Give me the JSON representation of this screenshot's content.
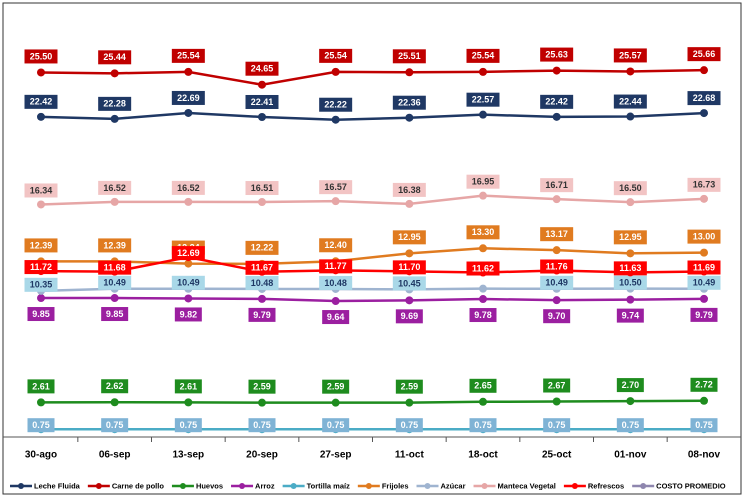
{
  "chart_data": {
    "type": "line",
    "categories": [
      "30-ago",
      "06-sep",
      "13-sep",
      "20-sep",
      "27-sep",
      "11-oct",
      "18-oct",
      "25-oct",
      "01-nov",
      "08-nov"
    ],
    "ylim": [
      0,
      29
    ],
    "series": [
      {
        "name": "Leche Fluida",
        "color": "#1f3864",
        "values": [
          22.42,
          22.28,
          22.69,
          22.41,
          22.22,
          22.36,
          22.57,
          22.42,
          22.44,
          22.68
        ],
        "value_labels": [
          "22.42",
          "22.28",
          "22.69",
          "22.41",
          "22.22",
          "22.36",
          "22.57",
          "22.42",
          "22.44",
          "22.68"
        ]
      },
      {
        "name": "Carne de pollo",
        "color": "#c00000",
        "values": [
          25.5,
          25.44,
          25.54,
          24.65,
          25.54,
          25.51,
          25.54,
          25.63,
          25.57,
          25.66
        ],
        "value_labels": [
          "25.50",
          "25.44",
          "25.54",
          "24.65",
          "25.54",
          "25.51",
          "25.54",
          "25.63",
          "25.57",
          "25.66"
        ]
      },
      {
        "name": "Huevos",
        "color": "#1e8c1e",
        "values": [
          2.61,
          2.62,
          2.61,
          2.59,
          2.59,
          2.59,
          2.65,
          2.67,
          2.7,
          2.72
        ],
        "value_labels": [
          "2.61",
          "2.62",
          "2.61",
          "2.59",
          "2.59",
          "2.59",
          "2.65",
          "2.67",
          "2.70",
          "2.72"
        ]
      },
      {
        "name": "Arroz",
        "color": "#9b1fa0",
        "values": [
          9.85,
          9.85,
          9.82,
          9.79,
          9.64,
          9.69,
          9.78,
          9.7,
          9.74,
          9.79
        ],
        "value_labels": [
          "9.85",
          "9.85",
          "9.82",
          "9.79",
          "9.64",
          "9.69",
          "9.78",
          "9.70",
          "9.74",
          "9.79"
        ]
      },
      {
        "name": "Tortilla maíz",
        "color": "#4bacc6",
        "values": [
          0.75,
          0.75,
          0.75,
          0.75,
          0.75,
          0.75,
          0.75,
          0.75,
          0.75,
          0.75
        ],
        "value_labels": [
          "0.75",
          "0.75",
          "0.75",
          "0.75",
          "0.75",
          "0.75",
          "0.75",
          "0.75",
          "0.75",
          "0.75"
        ]
      },
      {
        "name": "Frijoles",
        "color": "#e07b20",
        "values": [
          12.39,
          12.39,
          12.24,
          12.22,
          12.4,
          12.95,
          13.3,
          13.17,
          12.95,
          13.0
        ],
        "value_labels": [
          "12.39",
          "12.39",
          "12.24",
          "12.22",
          "12.40",
          "12.95",
          "13.30",
          "13.17",
          "12.95",
          "13.00"
        ]
      },
      {
        "name": "Azúcar",
        "color": "#9fb4d0",
        "values": [
          10.35,
          10.49,
          10.49,
          10.48,
          10.48,
          10.45,
          10.5,
          10.49,
          10.5,
          10.49
        ],
        "value_labels": [
          "10.35",
          "10.49",
          "10.49",
          "10.48",
          "10.48",
          "10.45",
          null,
          "10.49",
          "10.50",
          "10.49"
        ]
      },
      {
        "name": "Manteca Vegetal",
        "color": "#e6a6a6",
        "values": [
          16.34,
          16.52,
          16.52,
          16.51,
          16.57,
          16.38,
          16.95,
          16.71,
          16.5,
          16.73
        ],
        "value_labels": [
          "16.34",
          "16.52",
          "16.52",
          "16.51",
          "16.57",
          "16.38",
          "16.95",
          "16.71",
          "16.50",
          "16.73"
        ]
      },
      {
        "name": "Refrescos",
        "color": "#ff0000",
        "values": [
          11.72,
          11.68,
          12.69,
          11.67,
          11.77,
          11.7,
          11.62,
          11.76,
          11.63,
          11.69
        ],
        "value_labels": [
          "11.72",
          "11.68",
          "12.69",
          "11.67",
          "11.77",
          "11.70",
          "11.62",
          "11.76",
          "11.63",
          "11.69"
        ]
      },
      {
        "name": "COSTO PROMEDIO",
        "color": "#8e86ae",
        "values": [
          null,
          null,
          null,
          null,
          null,
          null,
          null,
          null,
          null,
          null
        ]
      }
    ]
  }
}
